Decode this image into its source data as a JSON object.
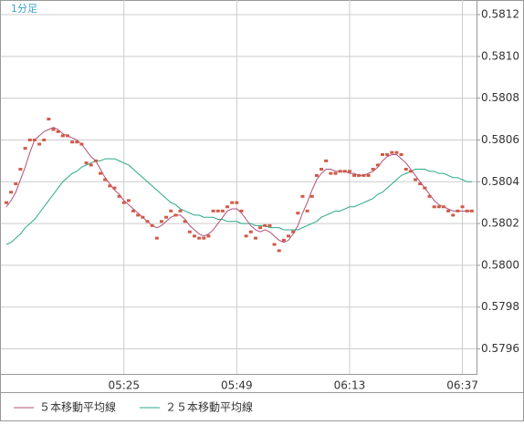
{
  "chart_data": {
    "type": "line",
    "label": "1分足",
    "categories": [
      null,
      null,
      null,
      null,
      null,
      null,
      null,
      null,
      null,
      null,
      null,
      null,
      null,
      null,
      null,
      null,
      null,
      null,
      null,
      null,
      null,
      null,
      null,
      null,
      null,
      "05:25",
      null,
      null,
      null,
      null,
      null,
      null,
      null,
      null,
      null,
      null,
      null,
      null,
      null,
      null,
      null,
      null,
      null,
      null,
      null,
      null,
      null,
      null,
      null,
      "05:49",
      null,
      null,
      null,
      null,
      null,
      null,
      null,
      null,
      null,
      null,
      null,
      null,
      null,
      null,
      null,
      null,
      null,
      null,
      null,
      null,
      null,
      null,
      null,
      "06:13",
      null,
      null,
      null,
      null,
      null,
      null,
      null,
      null,
      null,
      null,
      null,
      null,
      null,
      null,
      null,
      null,
      null,
      null,
      null,
      null,
      null,
      null,
      null,
      "06:37",
      null,
      null
    ],
    "values": [
      0.5803,
      0.58035,
      0.58039,
      0.58046,
      0.58056,
      0.5806,
      0.5806,
      0.58058,
      0.5806,
      0.5807,
      0.58065,
      0.58064,
      0.58062,
      0.58062,
      0.58059,
      0.58059,
      0.58058,
      0.58049,
      0.58048,
      0.5805,
      0.58044,
      0.58041,
      0.58038,
      0.58037,
      0.58033,
      0.5803,
      0.58031,
      0.58026,
      0.58024,
      0.58023,
      0.58021,
      0.58019,
      0.58013,
      0.58021,
      0.58023,
      0.58026,
      0.58024,
      0.58026,
      0.58021,
      0.58016,
      0.58014,
      0.58013,
      0.58013,
      0.58014,
      0.58026,
      0.58026,
      0.58026,
      0.58028,
      0.5803,
      0.5803,
      0.58026,
      0.58014,
      0.58016,
      0.58013,
      0.58018,
      0.58019,
      0.58019,
      0.5801,
      0.58007,
      0.58012,
      0.58014,
      0.58016,
      0.58025,
      0.58033,
      0.58026,
      0.58033,
      0.58043,
      0.58046,
      0.5805,
      0.58044,
      0.58044,
      0.58045,
      0.58045,
      0.58045,
      0.58043,
      0.58043,
      0.58043,
      0.58043,
      0.58046,
      0.58048,
      0.58053,
      0.58053,
      0.58054,
      0.58054,
      0.58053,
      0.58046,
      0.58045,
      0.58041,
      0.58039,
      0.58037,
      0.58033,
      0.58028,
      0.58028,
      0.58028,
      0.58026,
      0.58024,
      0.58026,
      0.58028,
      0.58026,
      0.58026
    ],
    "color": "#d05a48",
    "series": [
      {
        "name": "５本移動平均線",
        "color": "#b0507a",
        "values": [
          0.58028,
          0.58031,
          0.58035,
          0.58041,
          0.58047,
          0.58054,
          0.5806,
          0.58062,
          0.58064,
          0.58065,
          0.58066,
          0.58065,
          0.58063,
          0.58062,
          0.58061,
          0.5806,
          0.58058,
          0.58055,
          0.58052,
          0.5805,
          0.58046,
          0.58042,
          0.58039,
          0.58036,
          0.58034,
          0.58031,
          0.58029,
          0.58027,
          0.58025,
          0.58023,
          0.58021,
          0.58019,
          0.58018,
          0.58019,
          0.58021,
          0.58023,
          0.58024,
          0.58024,
          0.58022,
          0.58019,
          0.58017,
          0.58015,
          0.58014,
          0.58015,
          0.58017,
          0.5802,
          0.58023,
          0.58026,
          0.58027,
          0.58027,
          0.58025,
          0.58022,
          0.58019,
          0.58017,
          0.58016,
          0.58017,
          0.58016,
          0.58014,
          0.58012,
          0.58011,
          0.58012,
          0.58015,
          0.58019,
          0.58025,
          0.5803,
          0.58036,
          0.58041,
          0.58044,
          0.58046,
          0.58046,
          0.58045,
          0.58045,
          0.58045,
          0.58044,
          0.58044,
          0.58043,
          0.58043,
          0.58044,
          0.58045,
          0.58047,
          0.5805,
          0.58052,
          0.58053,
          0.58053,
          0.58051,
          0.58049,
          0.58046,
          0.58043,
          0.5804,
          0.58037,
          0.58034,
          0.58031,
          0.58029,
          0.58028,
          0.58027,
          0.58026,
          0.58026,
          0.58026,
          0.58026,
          0.58026
        ]
      },
      {
        "name": "２５本移動平均線",
        "color": "#2aa88a",
        "values": [
          0.5801,
          0.58011,
          0.58013,
          0.58015,
          0.58018,
          0.5802,
          0.58022,
          0.58025,
          0.58028,
          0.58031,
          0.58034,
          0.58037,
          0.5804,
          0.58042,
          0.58044,
          0.58045,
          0.58047,
          0.58048,
          0.58049,
          0.5805,
          0.5805,
          0.58051,
          0.58051,
          0.58051,
          0.5805,
          0.58049,
          0.58048,
          0.58046,
          0.58044,
          0.58042,
          0.5804,
          0.58038,
          0.58036,
          0.58034,
          0.58032,
          0.5803,
          0.58029,
          0.58027,
          0.58026,
          0.58025,
          0.58024,
          0.58024,
          0.58023,
          0.58023,
          0.58023,
          0.58022,
          0.58022,
          0.58021,
          0.58021,
          0.58021,
          0.5802,
          0.5802,
          0.5802,
          0.58019,
          0.58019,
          0.58019,
          0.58018,
          0.58018,
          0.58018,
          0.58017,
          0.58017,
          0.58017,
          0.58017,
          0.58018,
          0.58019,
          0.5802,
          0.58021,
          0.58023,
          0.58024,
          0.58025,
          0.58026,
          0.58026,
          0.58027,
          0.58028,
          0.58028,
          0.58029,
          0.5803,
          0.58031,
          0.58032,
          0.58034,
          0.58035,
          0.58037,
          0.58039,
          0.58041,
          0.58043,
          0.58044,
          0.58045,
          0.58046,
          0.58046,
          0.58046,
          0.58045,
          0.58045,
          0.58044,
          0.58044,
          0.58043,
          0.58042,
          0.58042,
          0.58041,
          0.5804,
          0.5804
        ]
      }
    ],
    "ylim": [
      0.57948,
      0.58127
    ],
    "yticks": [
      0.5796,
      0.5798,
      {
        "value": 0.58,
        "label": "0.5800"
      },
      0.5802,
      0.5804,
      0.5806,
      0.5808,
      {
        "value": 0.581,
        "label": "0.5810"
      },
      0.5812
    ],
    "grid": true
  }
}
